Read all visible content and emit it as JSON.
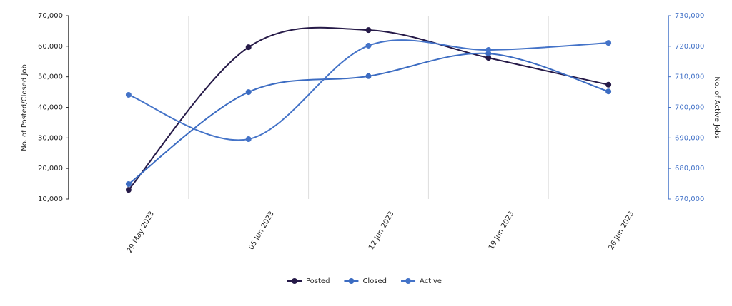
{
  "chart_data": {
    "type": "line",
    "categories": [
      "29 May 2023",
      "05 Jun 2023",
      "12 Jun 2023",
      "19 Jun 2023",
      "26 Jun 2023"
    ],
    "series": [
      {
        "name": "Posted",
        "color": "#261a48",
        "values": [
          13000,
          59700,
          65300,
          56200,
          47400
        ]
      },
      {
        "name": "Closed",
        "color": "#3c6cc2",
        "values": [
          14900,
          45000,
          50200,
          57600,
          45200
        ]
      },
      {
        "name": "Active",
        "color": "#4473c8",
        "axis": "y2",
        "values": [
          704100,
          689600,
          720200,
          718800,
          721100
        ]
      }
    ],
    "y_label": "No. of Posted/Closed Job",
    "y2_label": "No. of Active Jobs",
    "ylim": [
      10000,
      70000
    ],
    "yticks": [
      {
        "value": 10000,
        "label": "10,000"
      },
      {
        "value": 20000,
        "label": "20,000"
      },
      {
        "value": 30000,
        "label": "30,000"
      },
      {
        "value": 40000,
        "label": "40,000"
      },
      {
        "value": 50000,
        "label": "50,000"
      },
      {
        "value": 60000,
        "label": "60,000"
      },
      {
        "value": 70000,
        "label": "70,000"
      }
    ],
    "y2lim": [
      670000,
      730000
    ],
    "y2ticks": [
      {
        "value": 670000,
        "label": "670,000"
      },
      {
        "value": 680000,
        "label": "680,000"
      },
      {
        "value": 690000,
        "label": "690,000"
      },
      {
        "value": 700000,
        "label": "700,000"
      },
      {
        "value": 710000,
        "label": "710,000"
      },
      {
        "value": 720000,
        "label": "720,000"
      },
      {
        "value": 730000,
        "label": "730,000"
      }
    ],
    "y2_color": "#4473c8",
    "grid": true,
    "legend": "bottom"
  }
}
